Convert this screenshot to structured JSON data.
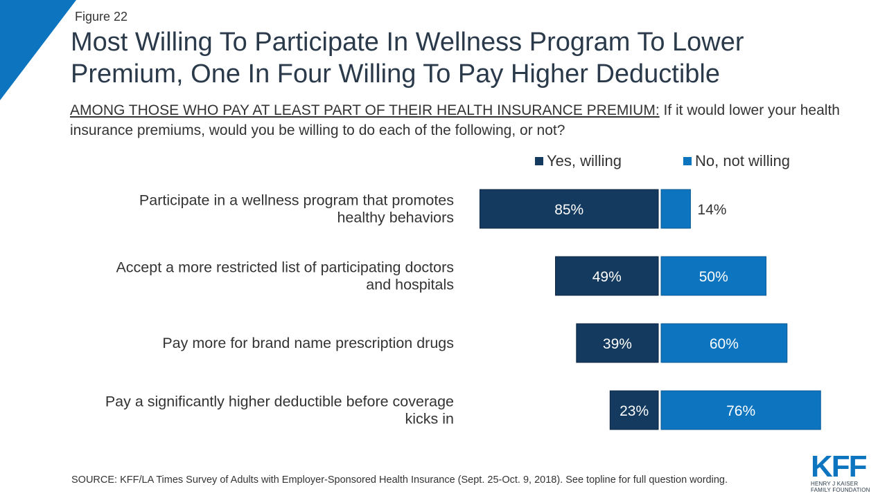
{
  "figure_label": "Figure 22",
  "title": "Most Willing To Participate In Wellness Program To Lower Premium, One In Four Willing To Pay Higher Deductible",
  "subtitle_underlined": "AMONG THOSE WHO PAY AT LEAST PART OF THEIR HEALTH INSURANCE PREMIUM:",
  "subtitle_rest": " If it would lower your health insurance premiums, would you be willing to do each of the following, or not?",
  "source": "SOURCE: KFF/LA Times Survey of Adults with Employer-Sponsored Health Insurance  (Sept. 25-Oct. 9, 2018). See topline for full question wording.",
  "logo": {
    "text": "KFF",
    "line1": "HENRY J KAISER",
    "line2": "FAMILY FOUNDATION"
  },
  "colors": {
    "yes": "#143a5f",
    "no": "#0d74bf",
    "corner": "#0d74bf"
  },
  "chart_data": {
    "type": "bar",
    "orientation": "horizontal-diverging",
    "legend_position": "top-right",
    "categories": [
      [
        "Participate in a wellness program that promotes",
        "healthy behaviors"
      ],
      [
        "Accept a more restricted list of participating doctors",
        "and hospitals"
      ],
      [
        "Pay more for brand name prescription drugs"
      ],
      [
        "Pay a significantly higher deductible before coverage",
        "kicks in"
      ]
    ],
    "series": [
      {
        "name": "Yes, willing",
        "values": [
          85,
          49,
          39,
          23
        ],
        "labels": [
          "85%",
          "49%",
          "39%",
          "23%"
        ]
      },
      {
        "name": "No, not willing",
        "values": [
          14,
          50,
          60,
          76
        ],
        "labels": [
          "14%",
          "50%",
          "60%",
          "76%"
        ]
      }
    ]
  }
}
